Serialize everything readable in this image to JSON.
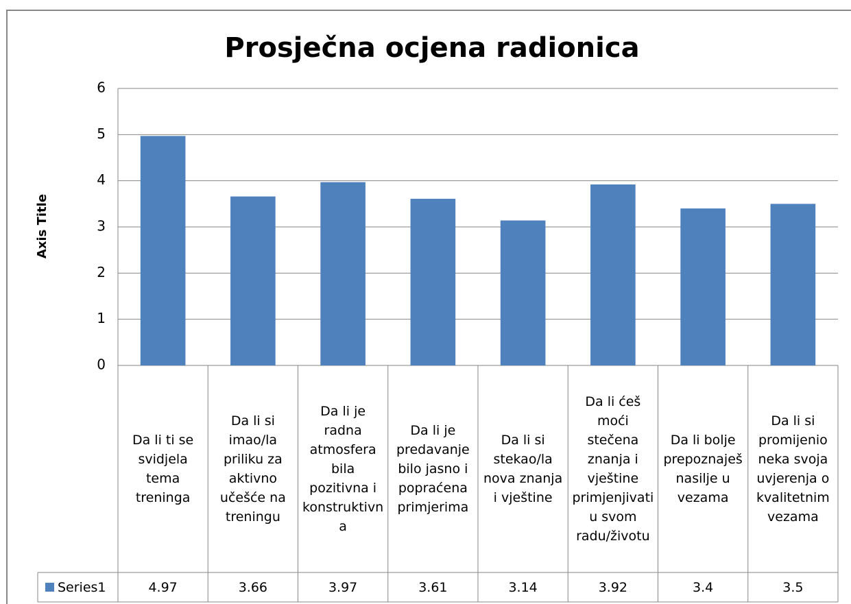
{
  "chart_data": {
    "type": "bar",
    "title": "Prosječna ocjena radionica",
    "y_label": "Axis Title",
    "categories": [
      "Da li ti se svidjela tema treninga",
      "Da li si imao/la priliku za aktivno učešće na treningu",
      "Da li je radna atmosfera bila pozitivna i konstruktivna",
      "Da li je predavanje bilo jasno i popraćena primjerima",
      "Da li si stekao/la nova znanja i vještine",
      "Da li ćeš moći stečena znanja i vještine primjenjivati u svom radu/životu",
      "Da li bolje prepoznaješ nasilje u vezama",
      "Da li si promijenio neka svoja uvjerenja o kvalitetnim vezama"
    ],
    "series": [
      {
        "name": "Series1",
        "color": "#4f81bd",
        "values": [
          4.97,
          3.66,
          3.97,
          3.61,
          3.14,
          3.92,
          3.4,
          3.5
        ]
      }
    ],
    "ylim": [
      0,
      6
    ],
    "yticks": [
      0,
      1,
      2,
      3,
      4,
      5,
      6
    ],
    "grid": true,
    "data_table": true
  }
}
